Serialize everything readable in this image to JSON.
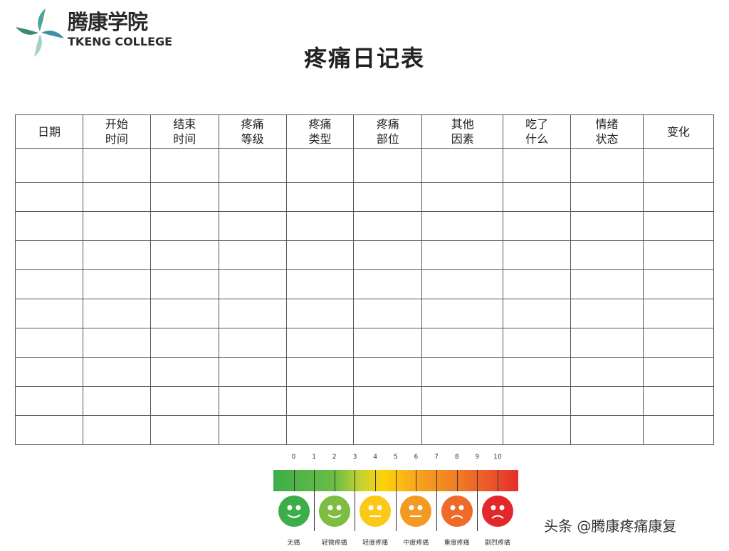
{
  "logo": {
    "cn": "腾康学院",
    "en": "TKENG COLLEGE"
  },
  "title": "疼痛日记表",
  "table": {
    "headers": [
      [
        "日期"
      ],
      [
        "开始",
        "时间"
      ],
      [
        "结束",
        "时间"
      ],
      [
        "疼痛",
        "等级"
      ],
      [
        "疼痛",
        "类型"
      ],
      [
        "疼痛",
        "部位"
      ],
      [
        "其他",
        "因素"
      ],
      [
        "吃了",
        "什么"
      ],
      [
        "情绪",
        "状态"
      ],
      [
        "变化"
      ]
    ],
    "empty_rows": 10
  },
  "pain_scale": {
    "numbers": [
      "0",
      "1",
      "2",
      "3",
      "4",
      "5",
      "6",
      "7",
      "8",
      "9",
      "10"
    ],
    "levels": [
      {
        "label": "无痛",
        "color": "#3cae49",
        "mouth": "smile"
      },
      {
        "label": "轻微疼痛",
        "color": "#7dbd41",
        "mouth": "smile"
      },
      {
        "label": "轻度疼痛",
        "color": "#fcc818",
        "mouth": "flat"
      },
      {
        "label": "中度疼痛",
        "color": "#f39a22",
        "mouth": "flat"
      },
      {
        "label": "重度疼痛",
        "color": "#ee6a28",
        "mouth": "frown"
      },
      {
        "label": "剧烈疼痛",
        "color": "#e3282b",
        "mouth": "frown"
      }
    ]
  },
  "watermark": "头条 @腾康疼痛康复"
}
